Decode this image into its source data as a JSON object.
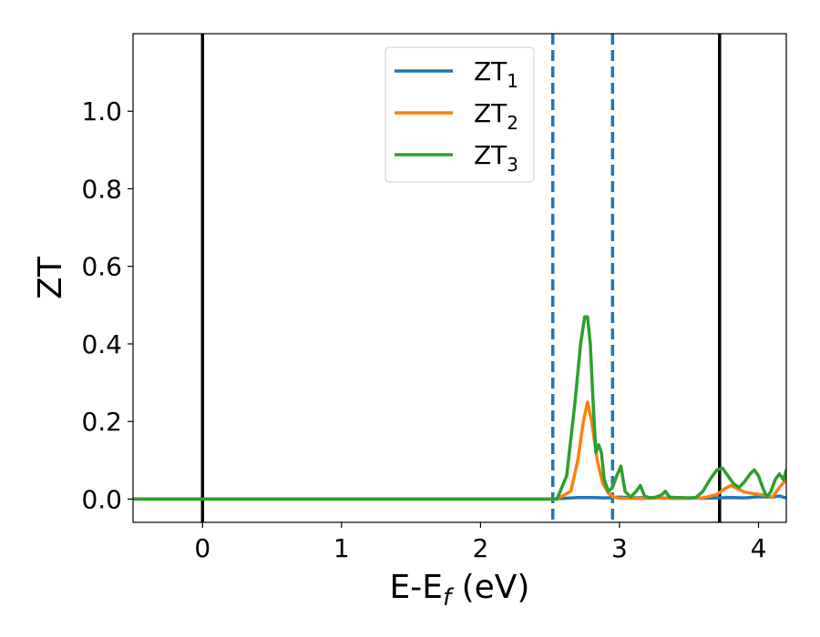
{
  "chart_data": {
    "type": "line",
    "xlabel": "E-E",
    "xlabel_sub": "f",
    "xlabel_unit": " (eV)",
    "ylabel": "ZT",
    "xlim": [
      -0.5,
      4.2
    ],
    "ylim": [
      -0.06,
      1.2
    ],
    "xticks": [
      0,
      1,
      2,
      3,
      4
    ],
    "xtick_labels": [
      "0",
      "1",
      "2",
      "3",
      "4"
    ],
    "yticks": [
      0.0,
      0.2,
      0.4,
      0.6,
      0.8,
      1.0
    ],
    "ytick_labels": [
      "0.0",
      "0.2",
      "0.4",
      "0.6",
      "0.8",
      "1.0"
    ],
    "grid": false,
    "legend_position": "top-center",
    "vlines": [
      {
        "x": 0.0,
        "style": "solid",
        "color": "#000000"
      },
      {
        "x": 3.72,
        "style": "solid",
        "color": "#000000"
      },
      {
        "x": 2.52,
        "style": "dashed",
        "color": "#1f77b4"
      },
      {
        "x": 2.95,
        "style": "dashed",
        "color": "#1f77b4"
      }
    ],
    "series": [
      {
        "name": "ZT",
        "name_sub": "1",
        "color": "#1f77b4",
        "x": [
          -0.5,
          2.5,
          2.6,
          2.7,
          2.8,
          2.9,
          3.0,
          3.1,
          3.2,
          3.3,
          3.4,
          3.5,
          3.6,
          3.7,
          3.8,
          3.9,
          4.0,
          4.1,
          4.15,
          4.2
        ],
        "y": [
          0.0,
          0.0,
          0.002,
          0.004,
          0.004,
          0.003,
          0.005,
          0.003,
          0.004,
          0.003,
          0.002,
          0.003,
          0.002,
          0.003,
          0.004,
          0.003,
          0.006,
          0.005,
          0.008,
          0.003
        ]
      },
      {
        "name": "ZT",
        "name_sub": "2",
        "color": "#ff7f0e",
        "x": [
          -0.5,
          2.55,
          2.65,
          2.7,
          2.74,
          2.77,
          2.8,
          2.84,
          2.88,
          2.92,
          2.96,
          3.0,
          3.1,
          3.2,
          3.3,
          3.4,
          3.5,
          3.6,
          3.7,
          3.75,
          3.8,
          3.9,
          4.0,
          4.05,
          4.1,
          4.15,
          4.2
        ],
        "y": [
          0.0,
          0.0,
          0.02,
          0.1,
          0.2,
          0.25,
          0.2,
          0.1,
          0.04,
          0.015,
          0.005,
          0.002,
          0.002,
          0.002,
          0.003,
          0.002,
          0.002,
          0.003,
          0.012,
          0.025,
          0.035,
          0.018,
          0.012,
          0.01,
          0.005,
          0.03,
          0.05
        ]
      },
      {
        "name": "ZT",
        "name_sub": "3",
        "color": "#2ca02c",
        "x": [
          -0.5,
          2.55,
          2.62,
          2.68,
          2.72,
          2.75,
          2.77,
          2.79,
          2.81,
          2.83,
          2.85,
          2.87,
          2.89,
          2.92,
          2.95,
          2.98,
          3.01,
          3.04,
          3.08,
          3.12,
          3.15,
          3.18,
          3.22,
          3.26,
          3.3,
          3.33,
          3.36,
          3.4,
          3.45,
          3.5,
          3.55,
          3.6,
          3.65,
          3.7,
          3.74,
          3.78,
          3.82,
          3.86,
          3.9,
          3.94,
          3.97,
          4.0,
          4.03,
          4.06,
          4.09,
          4.12,
          4.15,
          4.18,
          4.2
        ],
        "y": [
          0.0,
          0.0,
          0.06,
          0.25,
          0.4,
          0.47,
          0.47,
          0.4,
          0.25,
          0.12,
          0.14,
          0.12,
          0.05,
          0.02,
          0.03,
          0.06,
          0.085,
          0.02,
          0.005,
          0.02,
          0.035,
          0.008,
          0.003,
          0.005,
          0.01,
          0.02,
          0.005,
          0.004,
          0.004,
          0.003,
          0.004,
          0.02,
          0.05,
          0.075,
          0.08,
          0.06,
          0.04,
          0.03,
          0.045,
          0.065,
          0.075,
          0.06,
          0.03,
          0.005,
          0.02,
          0.05,
          0.065,
          0.05,
          0.075
        ]
      }
    ]
  }
}
